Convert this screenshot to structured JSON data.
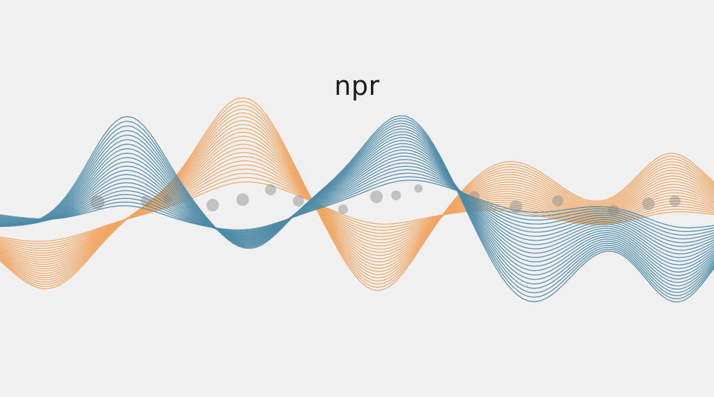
{
  "brand": {
    "name": "npr"
  },
  "colors": {
    "background": "#f0f0f0",
    "blue": "#4d8aa6",
    "orange": "#f0a562",
    "dots": "#8a8a8a",
    "logo": "#1c1c1c"
  },
  "artwork": {
    "description_icon": "sound-wave-illustration-icon"
  }
}
